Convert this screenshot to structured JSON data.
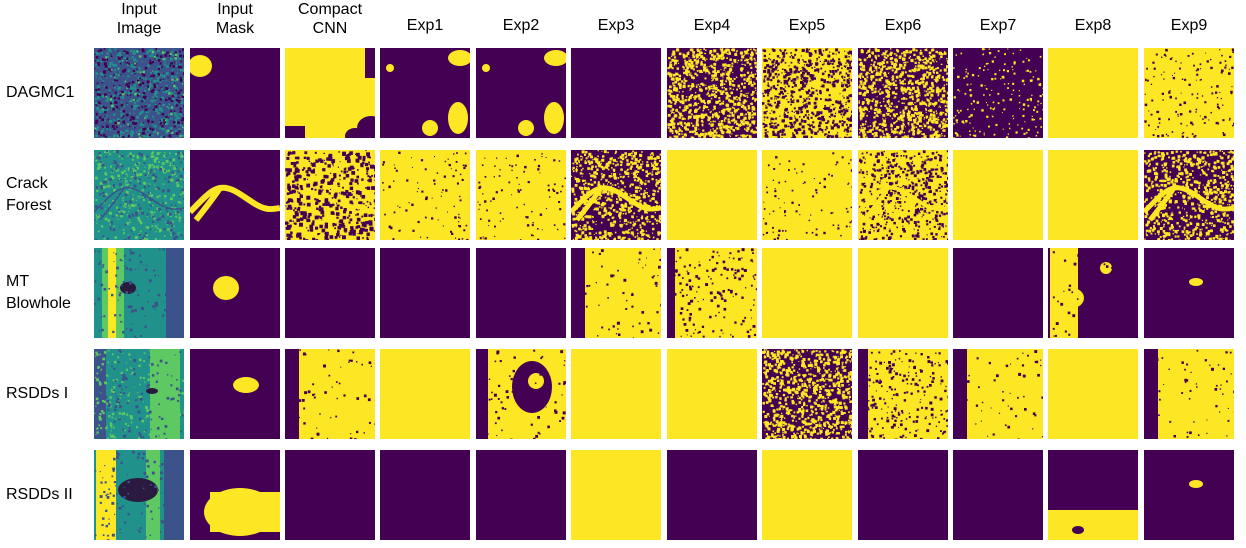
{
  "figure": {
    "colors": {
      "background_purple": "#440154",
      "foreground_yellow": "#fde725",
      "teal": "#21918c",
      "blue": "#3b528b",
      "green": "#5ec962"
    },
    "columns": [
      [
        "Input",
        "Image"
      ],
      [
        "Input",
        "Mask"
      ],
      [
        "Compact",
        "CNN"
      ],
      [
        "Exp1"
      ],
      [
        "Exp2"
      ],
      [
        "Exp3"
      ],
      [
        "Exp4"
      ],
      [
        "Exp5"
      ],
      [
        "Exp6"
      ],
      [
        "Exp7"
      ],
      [
        "Exp8"
      ],
      [
        "Exp9"
      ]
    ],
    "rows": [
      {
        "label": [
          "DAGMC1"
        ],
        "cells": [
          "input-noisy",
          "mask-blob-corner",
          "mostly-yellow-blobs",
          "purple-blobs-few",
          "purple-blobs-few",
          "purple",
          "noisy-mix",
          "noisy-mix-yellow",
          "noisy-mix",
          "noisy-sparse",
          "yellow",
          "noisy-yellow"
        ]
      },
      {
        "label": [
          "Crack",
          "Forest"
        ],
        "cells": [
          "input-crack",
          "mask-crack",
          "striped-noise",
          "yellow-specks",
          "yellow-specks",
          "crack-noise",
          "yellow",
          "yellow-specks",
          "crack-noise-light",
          "yellow",
          "yellow",
          "crack-noise"
        ]
      },
      {
        "label": [
          "MT",
          "Blowhole"
        ],
        "cells": [
          "input-blowhole",
          "mask-blob-center",
          "purple",
          "purple",
          "purple",
          "yellow-left-purple",
          "yellow-streaks",
          "yellow",
          "yellow",
          "purple",
          "purple-holes",
          "purple-small-blob"
        ]
      },
      {
        "label": [
          "RSDDs I"
        ],
        "cells": [
          "input-rail1",
          "mask-blob-small",
          "yellow-left-purple",
          "yellow",
          "mixed-blobs",
          "yellow",
          "yellow",
          "noisy-mix",
          "yellow-left-noisy",
          "yellow-left-purple",
          "yellow",
          "yellow-left-purple"
        ]
      },
      {
        "label": [
          "RSDDs II"
        ],
        "cells": [
          "input-rail2",
          "mask-blob-big",
          "purple",
          "purple",
          "purple",
          "yellow",
          "purple",
          "yellow",
          "purple",
          "purple",
          "yellow-bottom-purple",
          "purple-small-blob"
        ]
      }
    ]
  }
}
